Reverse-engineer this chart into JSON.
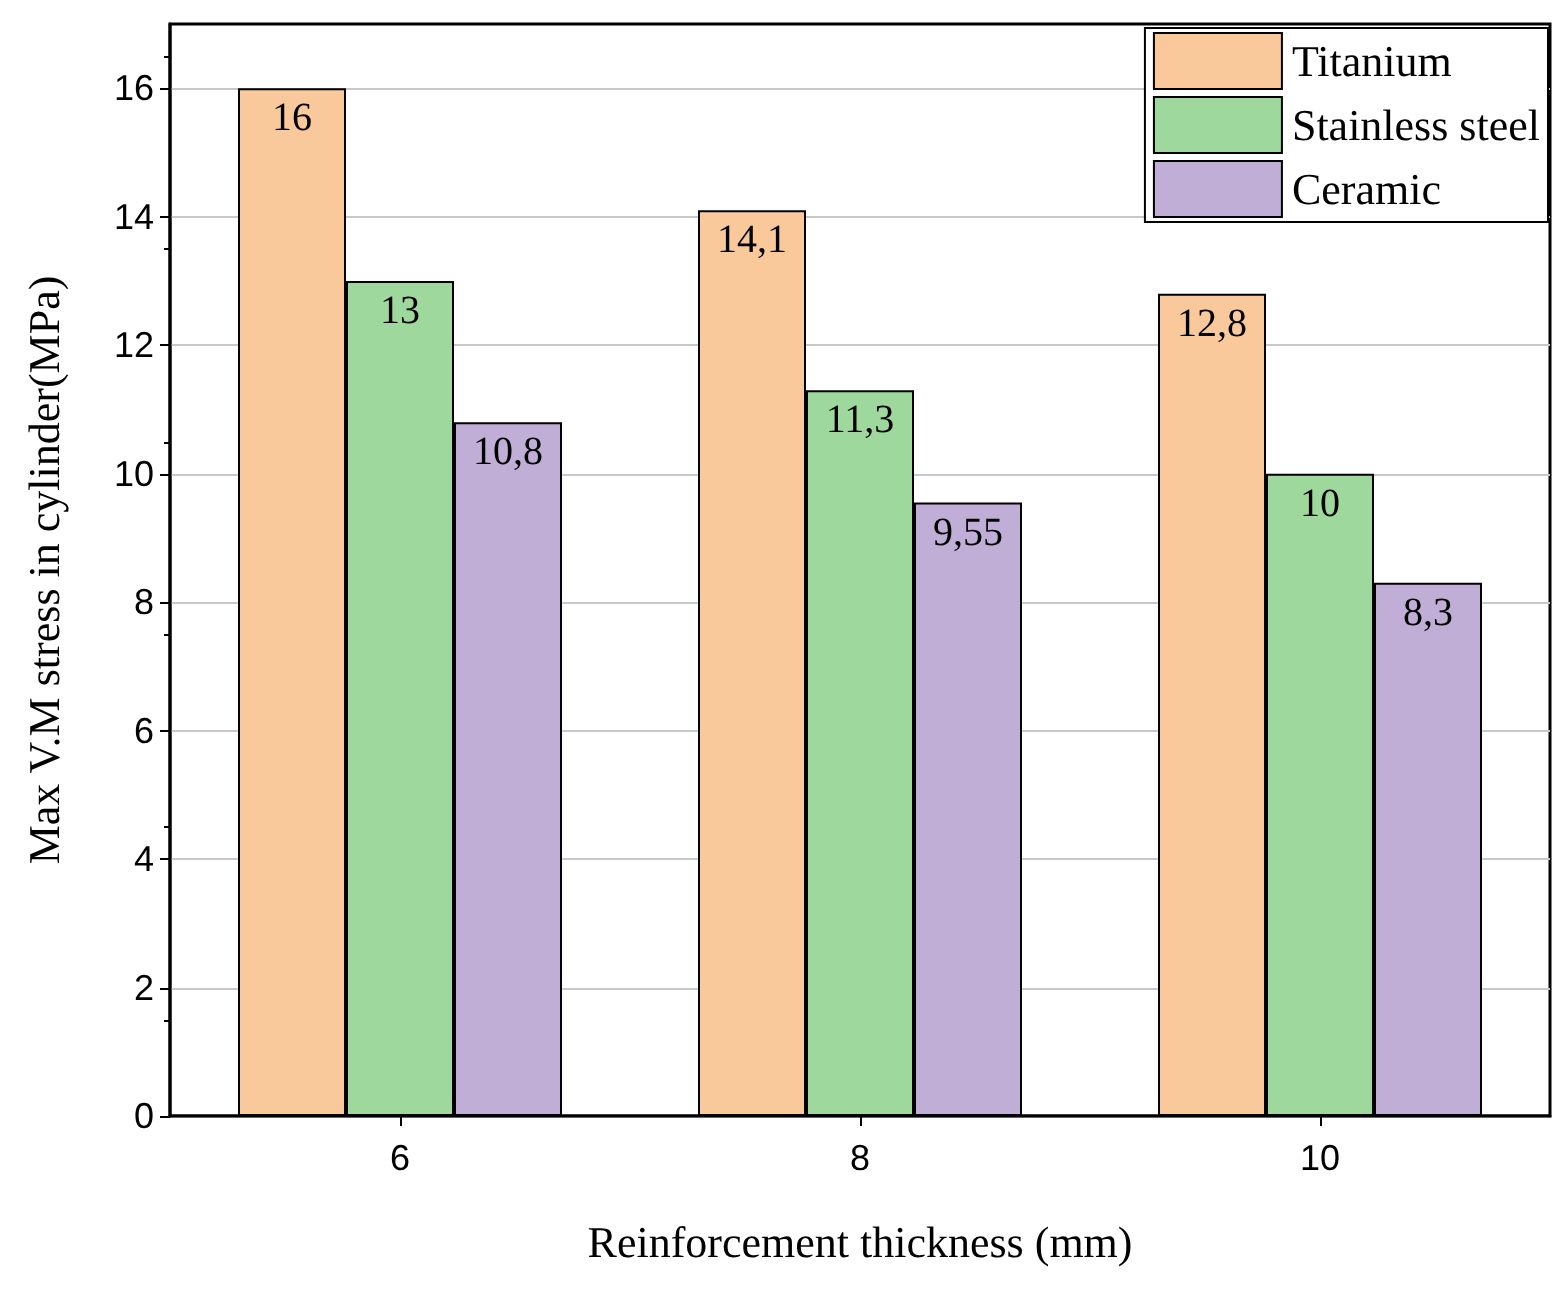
{
  "chart_data": {
    "type": "bar",
    "xlabel": "Reinforcement thickness (mm)",
    "ylabel": "Max V.M stress in cylinder(MPa)",
    "categories": [
      "6",
      "8",
      "10"
    ],
    "series": [
      {
        "name": "Titanium",
        "color": "#f9c89b",
        "values": [
          16,
          14.1,
          12.8
        ],
        "value_labels": [
          "16",
          "14,1",
          "12,8"
        ]
      },
      {
        "name": "Stainless steel",
        "color": "#9fd89c",
        "values": [
          13,
          11.3,
          10
        ],
        "value_labels": [
          "13",
          "11,3",
          "10"
        ]
      },
      {
        "name": "Ceramic",
        "color": "#c0aed6",
        "values": [
          10.8,
          9.55,
          8.3
        ],
        "value_labels": [
          "10,8",
          "9,55",
          "8,3"
        ]
      }
    ],
    "ylim": [
      0,
      17
    ],
    "yticks": [
      0,
      2,
      4,
      6,
      8,
      10,
      12,
      14,
      16
    ],
    "grid": "y",
    "legend": "top right"
  }
}
